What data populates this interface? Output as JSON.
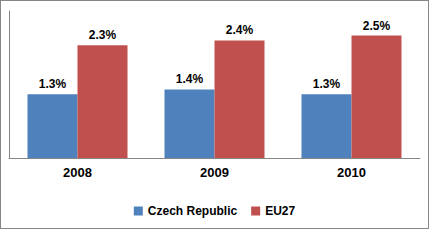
{
  "chart_data": {
    "type": "bar",
    "categories": [
      "2008",
      "2009",
      "2010"
    ],
    "series": [
      {
        "name": "Czech Republic",
        "color": "#4f81bd",
        "values": [
          1.3,
          1.4,
          1.3
        ],
        "value_labels": [
          "1.3%",
          "1.4%",
          "1.3%"
        ]
      },
      {
        "name": "EU27",
        "color": "#c0504d",
        "values": [
          2.3,
          2.4,
          2.5
        ],
        "value_labels": [
          "2.3%",
          "2.4%",
          "2.5%"
        ]
      }
    ],
    "ylim": [
      0,
      3
    ],
    "grid": false,
    "legend": "bottom",
    "data_labels": true,
    "tick_labels": "x"
  }
}
